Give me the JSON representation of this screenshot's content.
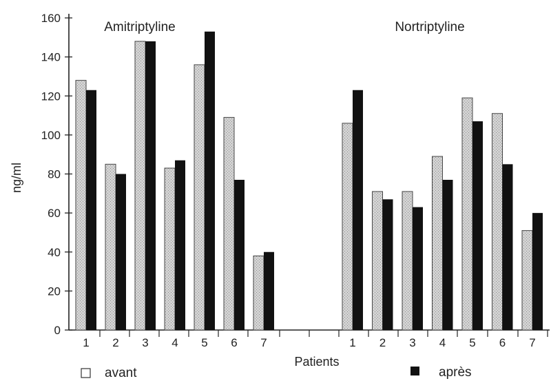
{
  "chart_data": {
    "type": "bar",
    "ylabel": "ng/ml",
    "xlabel": "Patients",
    "ylim": [
      0,
      160
    ],
    "yticks": [
      0,
      20,
      40,
      60,
      80,
      100,
      120,
      140,
      160
    ],
    "legend": {
      "placement": "bottom",
      "items": [
        {
          "label": "avant",
          "color": "#c9c9c9"
        },
        {
          "label": "après",
          "color": "#111111"
        }
      ]
    },
    "groups": [
      {
        "title": "Amitriptyline",
        "categories": [
          "1",
          "2",
          "3",
          "4",
          "5",
          "6",
          "7"
        ],
        "series": [
          {
            "name": "avant",
            "values": [
              128,
              85,
              148,
              83,
              136,
              109,
              38
            ]
          },
          {
            "name": "après",
            "values": [
              123,
              80,
              148,
              87,
              153,
              77,
              40
            ]
          }
        ]
      },
      {
        "title": "Nortriptyline",
        "categories": [
          "1",
          "2",
          "3",
          "4",
          "5",
          "6",
          "7"
        ],
        "series": [
          {
            "name": "avant",
            "values": [
              106,
              71,
              71,
              89,
              119,
              111,
              51
            ]
          },
          {
            "name": "après",
            "values": [
              123,
              67,
              63,
              77,
              107,
              85,
              60
            ]
          }
        ]
      }
    ]
  }
}
